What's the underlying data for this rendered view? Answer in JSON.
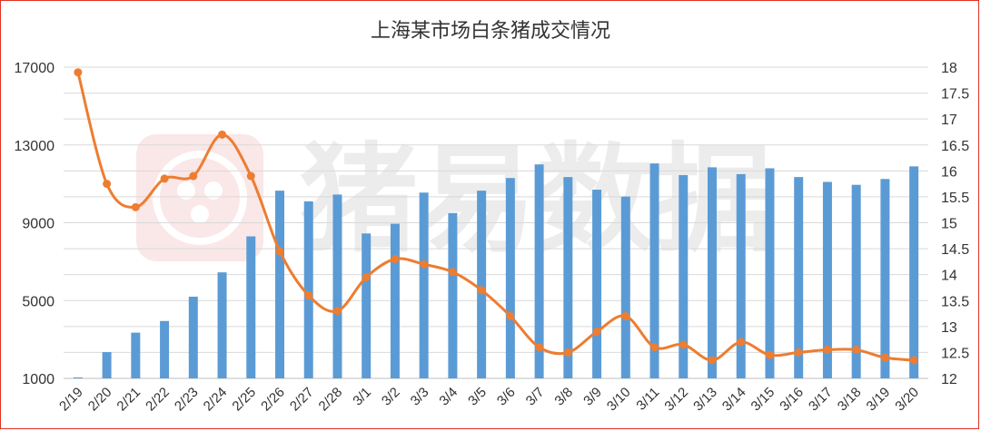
{
  "chart_data": {
    "type": "bar+line",
    "title": "上海某市场白条猪成交情况",
    "categories": [
      "2/19",
      "2/20",
      "2/21",
      "2/22",
      "2/23",
      "2/24",
      "2/25",
      "2/26",
      "2/27",
      "2/28",
      "3/1",
      "3/2",
      "3/3",
      "3/4",
      "3/5",
      "3/6",
      "3/7",
      "3/8",
      "3/9",
      "3/10",
      "3/11",
      "3/12",
      "3/13",
      "3/14",
      "3/15",
      "3/16",
      "3/17",
      "3/18",
      "3/19",
      "3/20"
    ],
    "series": [
      {
        "type": "bar",
        "axis": "left",
        "color": "#5b9bd5",
        "values": [
          1050,
          2350,
          3350,
          3950,
          5200,
          6450,
          8300,
          10650,
          10100,
          10450,
          8450,
          8950,
          10550,
          9500,
          10650,
          11300,
          12000,
          11350,
          10700,
          10350,
          12050,
          11450,
          11850,
          11500,
          11800,
          11350,
          11100,
          10950,
          11250,
          11900
        ]
      },
      {
        "type": "line",
        "axis": "right",
        "color": "#ed7d31",
        "values": [
          17.9,
          15.75,
          15.3,
          15.85,
          15.9,
          16.7,
          15.9,
          14.45,
          13.6,
          13.3,
          13.95,
          14.3,
          14.2,
          14.05,
          13.7,
          13.2,
          12.6,
          12.5,
          12.9,
          13.2,
          12.6,
          12.65,
          12.35,
          12.7,
          12.45,
          12.5,
          12.55,
          12.55,
          12.4,
          12.35
        ]
      }
    ],
    "y_left": {
      "min": 1000,
      "max": 17000,
      "ticks": [
        "1000",
        "5000",
        "9000",
        "13000",
        "17000"
      ]
    },
    "y_right": {
      "min": 12,
      "max": 18,
      "ticks": [
        "12",
        "12.5",
        "13",
        "13.5",
        "14",
        "14.5",
        "15",
        "15.5",
        "16",
        "16.5",
        "17",
        "17.5",
        "18"
      ]
    },
    "grid": "horizontal"
  },
  "watermark": {
    "text": "猪易数据",
    "logo": "pig-yi-logo"
  },
  "colors": {
    "frame": "#e03020",
    "grid": "#d9d9d9",
    "watermark": "#ececec"
  }
}
